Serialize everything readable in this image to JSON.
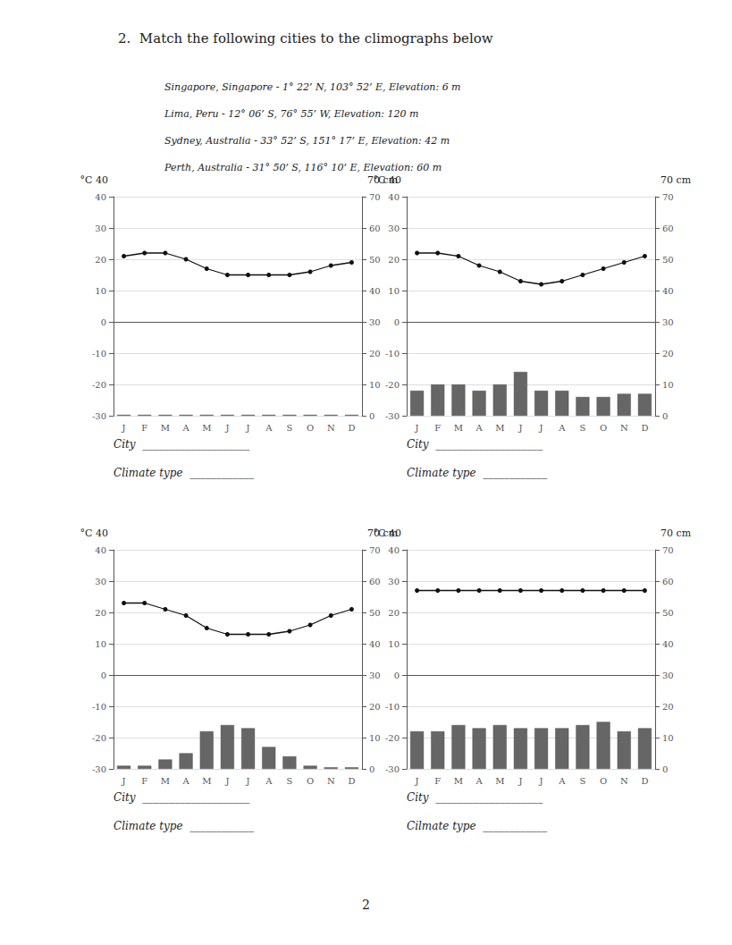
{
  "title": "2.  Match the following cities to the climographs below",
  "subtitle": [
    "Singapore, Singapore - 1° 22’ N, 103° 52’ E, Elevation: 6 m",
    "Lima, Peru - 12° 06’ S, 76° 55’ W, Elevation: 120 m",
    "Sydney, Australia - 33° 52’ S, 151° 17’ E, Elevation: 42 m",
    "Perth, Australia - 31° 50’ S, 116° 10’ E, Elevation: 60 m"
  ],
  "annotations": [
    "2"
  ],
  "chart_data": [
    {
      "type": "bar",
      "categories": [
        "J",
        "F",
        "M",
        "A",
        "M",
        "J",
        "J",
        "A",
        "S",
        "O",
        "N",
        "D"
      ],
      "series": [
        {
          "type": "bar",
          "axis": "y2",
          "color": "#666666",
          "values": [
            0.3,
            0.3,
            0.3,
            0.3,
            0.3,
            0.3,
            0.3,
            0.3,
            0.3,
            0.3,
            0.3,
            0.3
          ]
        },
        {
          "type": "line",
          "color": "#111111",
          "marker": "circle",
          "values": [
            21,
            22,
            22,
            20,
            17,
            15,
            15,
            15,
            15,
            16,
            18,
            19
          ]
        }
      ],
      "ylim": [
        -30,
        40
      ],
      "yticks": [
        -30,
        -20,
        -10,
        0,
        10,
        20,
        30,
        40
      ],
      "y2lim": [
        0,
        70
      ],
      "y2ticks": [
        0,
        10,
        20,
        30,
        40,
        50,
        60,
        70
      ],
      "grid": true,
      "annotations": [
        "°C 40",
        "70 cm",
        "City  ____________________",
        "Climate type  ____________"
      ]
    },
    {
      "type": "bar",
      "categories": [
        "J",
        "F",
        "M",
        "A",
        "M",
        "J",
        "J",
        "A",
        "S",
        "O",
        "N",
        "D"
      ],
      "series": [
        {
          "type": "bar",
          "axis": "y2",
          "color": "#666666",
          "values": [
            8,
            10,
            10,
            8,
            10,
            14,
            8,
            8,
            6,
            6,
            7,
            7
          ]
        },
        {
          "type": "line",
          "color": "#111111",
          "marker": "circle",
          "values": [
            22,
            22,
            21,
            18,
            16,
            13,
            12,
            13,
            15,
            17,
            19,
            21
          ]
        }
      ],
      "ylim": [
        -30,
        40
      ],
      "yticks": [
        -30,
        -20,
        -10,
        0,
        10,
        20,
        30,
        40
      ],
      "y2lim": [
        0,
        70
      ],
      "y2ticks": [
        0,
        10,
        20,
        30,
        40,
        50,
        60,
        70
      ],
      "grid": true,
      "annotations": [
        "°C 40",
        "70 cm",
        "City  ____________________",
        "Climate type  ____________"
      ]
    },
    {
      "type": "bar",
      "categories": [
        "J",
        "F",
        "M",
        "A",
        "M",
        "J",
        "J",
        "A",
        "S",
        "O",
        "N",
        "D"
      ],
      "series": [
        {
          "type": "bar",
          "axis": "y2",
          "color": "#666666",
          "values": [
            1,
            1,
            3,
            5,
            12,
            14,
            13,
            7,
            4,
            1,
            0.5,
            0.5
          ]
        },
        {
          "type": "line",
          "color": "#111111",
          "marker": "circle",
          "values": [
            23,
            23,
            21,
            19,
            15,
            13,
            13,
            13,
            14,
            16,
            19,
            21
          ]
        }
      ],
      "ylim": [
        -30,
        40
      ],
      "yticks": [
        -30,
        -20,
        -10,
        0,
        10,
        20,
        30,
        40
      ],
      "y2lim": [
        0,
        70
      ],
      "y2ticks": [
        0,
        10,
        20,
        30,
        40,
        50,
        60,
        70
      ],
      "grid": true,
      "annotations": [
        "°C 40",
        "70 cm",
        "City  ____________________",
        "Climate type  ____________"
      ]
    },
    {
      "type": "bar",
      "categories": [
        "J",
        "F",
        "M",
        "A",
        "M",
        "J",
        "J",
        "A",
        "S",
        "O",
        "N",
        "D"
      ],
      "series": [
        {
          "type": "bar",
          "axis": "y2",
          "color": "#666666",
          "values": [
            12,
            12,
            14,
            13,
            14,
            13,
            13,
            13,
            14,
            15,
            12,
            13
          ]
        },
        {
          "type": "line",
          "color": "#111111",
          "marker": "circle",
          "values": [
            27,
            27,
            27,
            27,
            27,
            27,
            27,
            27,
            27,
            27,
            27,
            27
          ]
        }
      ],
      "ylim": [
        -30,
        40
      ],
      "yticks": [
        -30,
        -20,
        -10,
        0,
        10,
        20,
        30,
        40
      ],
      "y2lim": [
        0,
        70
      ],
      "y2ticks": [
        0,
        10,
        20,
        30,
        40,
        50,
        60,
        70
      ],
      "grid": true,
      "annotations": [
        "°C 40",
        "70 cm",
        "City  ____________________",
        "Cilmate type  ____________"
      ]
    }
  ]
}
